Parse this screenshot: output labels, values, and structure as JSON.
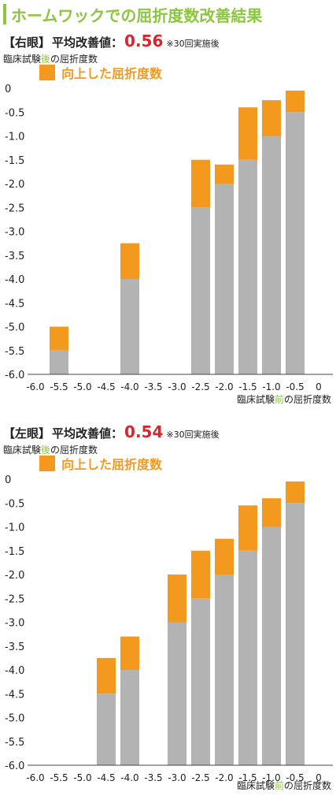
{
  "page_title": "ホームワックでの屈折度数改善結果",
  "colors": {
    "base": "#b3b3b3",
    "improved": "#f39a1e",
    "accent": "#8cc63f",
    "value": "#d7262e"
  },
  "chart_data": [
    {
      "type": "bar",
      "stacked": true,
      "eye_label": "【右眼】",
      "avg_label": "平均改善値：",
      "avg_value": "0.56",
      "note": "※30回実施後",
      "ylabel_parts": [
        "臨床試験",
        "後",
        "の屈折度数"
      ],
      "xlabel_parts": [
        "臨床試験",
        "前",
        "の屈折度数"
      ],
      "legend": "向上した屈折度数",
      "ylim": [
        -6.0,
        0
      ],
      "y_ticks": [
        "0",
        "-0.5",
        "-1.0",
        "-1.5",
        "-2.0",
        "-2.5",
        "-3.0",
        "-3.5",
        "-4.0",
        "-4.5",
        "-5.0",
        "-5.5",
        "-6.0"
      ],
      "x_ticks": [
        "-6.0",
        "-5.5",
        "-5.0",
        "-4.5",
        "-4.0",
        "-3.5",
        "-3.0",
        "-2.5",
        "-2.0",
        "-1.5",
        "-1.0",
        "-0.5",
        "0"
      ],
      "bars": [
        {
          "x": -5.5,
          "before": -5.5,
          "after": -5.0
        },
        {
          "x": -4.0,
          "before": -4.0,
          "after": -3.25
        },
        {
          "x": -2.5,
          "before": -2.5,
          "after": -1.5
        },
        {
          "x": -2.0,
          "before": -2.0,
          "after": -1.6
        },
        {
          "x": -1.5,
          "before": -1.5,
          "after": -0.4
        },
        {
          "x": -1.0,
          "before": -1.0,
          "after": -0.25
        },
        {
          "x": -0.5,
          "before": -0.5,
          "after": -0.05
        }
      ]
    },
    {
      "type": "bar",
      "stacked": true,
      "eye_label": "【左眼】",
      "avg_label": "平均改善値：",
      "avg_value": "0.54",
      "note": "※30回実施後",
      "ylabel_parts": [
        "臨床試験",
        "後",
        "の屈折度数"
      ],
      "xlabel_parts": [
        "臨床試験",
        "前",
        "の屈折度数"
      ],
      "legend": "向上した屈折度数",
      "ylim": [
        -6.0,
        0
      ],
      "y_ticks": [
        "0",
        "-0.5",
        "-1.0",
        "-1.5",
        "-2.0",
        "-2.5",
        "-3.0",
        "-3.5",
        "-4.0",
        "-4.5",
        "-5.0",
        "-5.5",
        "-6.0"
      ],
      "x_ticks": [
        "-6.0",
        "-5.5",
        "-5.0",
        "-4.5",
        "-4.0",
        "-3.5",
        "-3.0",
        "-2.5",
        "-2.0",
        "-1.5",
        "-1.0",
        "-0.5",
        "0"
      ],
      "bars": [
        {
          "x": -4.5,
          "before": -4.5,
          "after": -3.75
        },
        {
          "x": -4.0,
          "before": -4.0,
          "after": -3.3
        },
        {
          "x": -3.0,
          "before": -3.0,
          "after": -2.0
        },
        {
          "x": -2.5,
          "before": -2.5,
          "after": -1.5
        },
        {
          "x": -2.0,
          "before": -2.0,
          "after": -1.25
        },
        {
          "x": -1.5,
          "before": -1.5,
          "after": -0.55
        },
        {
          "x": -1.0,
          "before": -1.0,
          "after": -0.4
        },
        {
          "x": -0.5,
          "before": -0.5,
          "after": -0.05
        }
      ]
    }
  ]
}
